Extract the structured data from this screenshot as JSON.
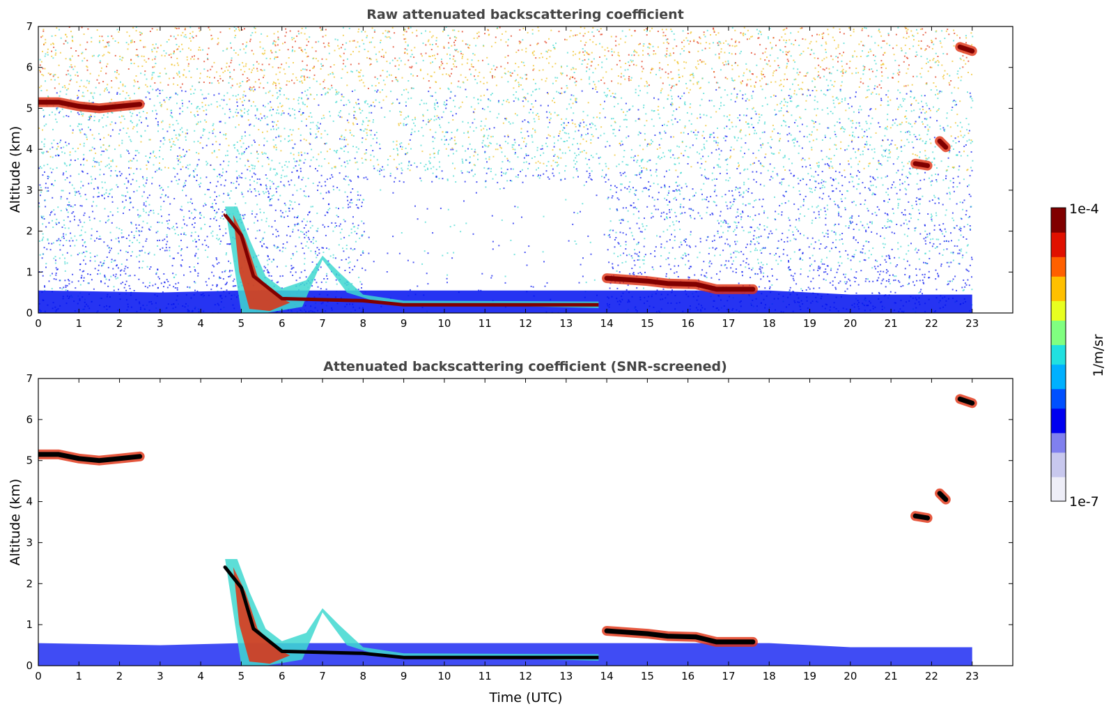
{
  "colors": {
    "cloud_core": "#800000",
    "strong": "#e03010",
    "moderate": "#f0c020",
    "weak": "#40d8d0",
    "aerosol": "#0010f0",
    "screened_core": "#000000",
    "colormap": [
      "#eeeef8",
      "#c8c8ee",
      "#8080ee",
      "#0000f0",
      "#0050ff",
      "#00b0ff",
      "#20e0e0",
      "#80ff80",
      "#e8ff20",
      "#ffc000",
      "#ff6000",
      "#e01000",
      "#800000"
    ]
  },
  "chart_data": [
    {
      "type": "heatmap",
      "title": "Raw attenuated backscattering coefficient",
      "xlabel": "",
      "ylabel": "Altitude (km)",
      "xlim": [
        0,
        24
      ],
      "ylim": [
        0,
        7
      ],
      "xticks": [
        "0",
        "1",
        "2",
        "3",
        "4",
        "5",
        "6",
        "7",
        "8",
        "9",
        "10",
        "11",
        "12",
        "13",
        "14",
        "15",
        "16",
        "17",
        "18",
        "19",
        "20",
        "21",
        "22",
        "23"
      ],
      "yticks": [
        "0",
        "1",
        "2",
        "3",
        "4",
        "5",
        "6",
        "7"
      ],
      "data_extent_x": [
        0,
        23
      ],
      "noise": true,
      "layers": [
        {
          "kind": "aerosol",
          "points": [
            [
              0,
              0.55
            ],
            [
              3,
              0.5
            ],
            [
              5,
              0.55
            ],
            [
              18,
              0.55
            ],
            [
              20,
              0.45
            ],
            [
              23,
              0.45
            ]
          ]
        },
        {
          "kind": "boundary",
          "points": [
            [
              4.6,
              2.4
            ],
            [
              5.0,
              1.9
            ],
            [
              5.3,
              0.9
            ],
            [
              6,
              0.35
            ],
            [
              8,
              0.3
            ],
            [
              9,
              0.2
            ],
            [
              12,
              0.2
            ],
            [
              13.8,
              0.2
            ]
          ]
        },
        {
          "kind": "cloud",
          "points": [
            [
              0,
              5.15
            ],
            [
              0.5,
              5.15
            ],
            [
              1,
              5.05
            ],
            [
              1.5,
              5.0
            ],
            [
              2,
              5.05
            ],
            [
              2.5,
              5.1
            ]
          ]
        },
        {
          "kind": "cloud",
          "points": [
            [
              14,
              0.85
            ],
            [
              15,
              0.78
            ],
            [
              15.5,
              0.72
            ],
            [
              16.2,
              0.7
            ],
            [
              16.7,
              0.58
            ],
            [
              17.6,
              0.58
            ]
          ]
        },
        {
          "kind": "cloud",
          "points": [
            [
              22.7,
              6.5
            ],
            [
              23,
              6.4
            ]
          ]
        },
        {
          "kind": "cloud",
          "points": [
            [
              22.2,
              4.2
            ],
            [
              22.35,
              4.05
            ]
          ]
        },
        {
          "kind": "cloud",
          "points": [
            [
              21.6,
              3.65
            ],
            [
              21.9,
              3.6
            ]
          ]
        }
      ]
    },
    {
      "type": "heatmap",
      "title": "Attenuated backscattering coefficient (SNR-screened)",
      "xlabel": "Time (UTC)",
      "ylabel": "Altitude (km)",
      "xlim": [
        0,
        24
      ],
      "ylim": [
        0,
        7
      ],
      "xticks": [
        "0",
        "1",
        "2",
        "3",
        "4",
        "5",
        "6",
        "7",
        "8",
        "9",
        "10",
        "11",
        "12",
        "13",
        "14",
        "15",
        "16",
        "17",
        "18",
        "19",
        "20",
        "21",
        "22",
        "23"
      ],
      "yticks": [
        "0",
        "1",
        "2",
        "3",
        "4",
        "5",
        "6",
        "7"
      ],
      "data_extent_x": [
        0,
        23
      ],
      "noise": false,
      "layers": [
        {
          "kind": "aerosol",
          "points": [
            [
              0,
              0.55
            ],
            [
              3,
              0.5
            ],
            [
              5,
              0.55
            ],
            [
              18,
              0.55
            ],
            [
              20,
              0.45
            ],
            [
              23,
              0.45
            ]
          ]
        },
        {
          "kind": "boundary",
          "points": [
            [
              4.6,
              2.4
            ],
            [
              5.0,
              1.9
            ],
            [
              5.3,
              0.9
            ],
            [
              6,
              0.35
            ],
            [
              8,
              0.3
            ],
            [
              9,
              0.2
            ],
            [
              12,
              0.2
            ],
            [
              13.8,
              0.2
            ]
          ]
        },
        {
          "kind": "cloud",
          "points": [
            [
              0,
              5.15
            ],
            [
              0.5,
              5.15
            ],
            [
              1,
              5.05
            ],
            [
              1.5,
              5.0
            ],
            [
              2,
              5.05
            ],
            [
              2.5,
              5.1
            ]
          ]
        },
        {
          "kind": "cloud",
          "points": [
            [
              14,
              0.85
            ],
            [
              15,
              0.78
            ],
            [
              15.5,
              0.72
            ],
            [
              16.2,
              0.7
            ],
            [
              16.7,
              0.58
            ],
            [
              17.6,
              0.58
            ]
          ]
        },
        {
          "kind": "cloud",
          "points": [
            [
              22.7,
              6.5
            ],
            [
              23,
              6.4
            ]
          ]
        },
        {
          "kind": "cloud",
          "points": [
            [
              22.2,
              4.2
            ],
            [
              22.35,
              4.05
            ]
          ]
        },
        {
          "kind": "cloud",
          "points": [
            [
              21.6,
              3.65
            ],
            [
              21.9,
              3.6
            ]
          ]
        }
      ]
    }
  ],
  "colorbar": {
    "label": "1/m/sr",
    "max_label": "1e-4",
    "min_label": "1e-7",
    "range": [
      1e-07,
      0.0001
    ],
    "scale": "log"
  }
}
